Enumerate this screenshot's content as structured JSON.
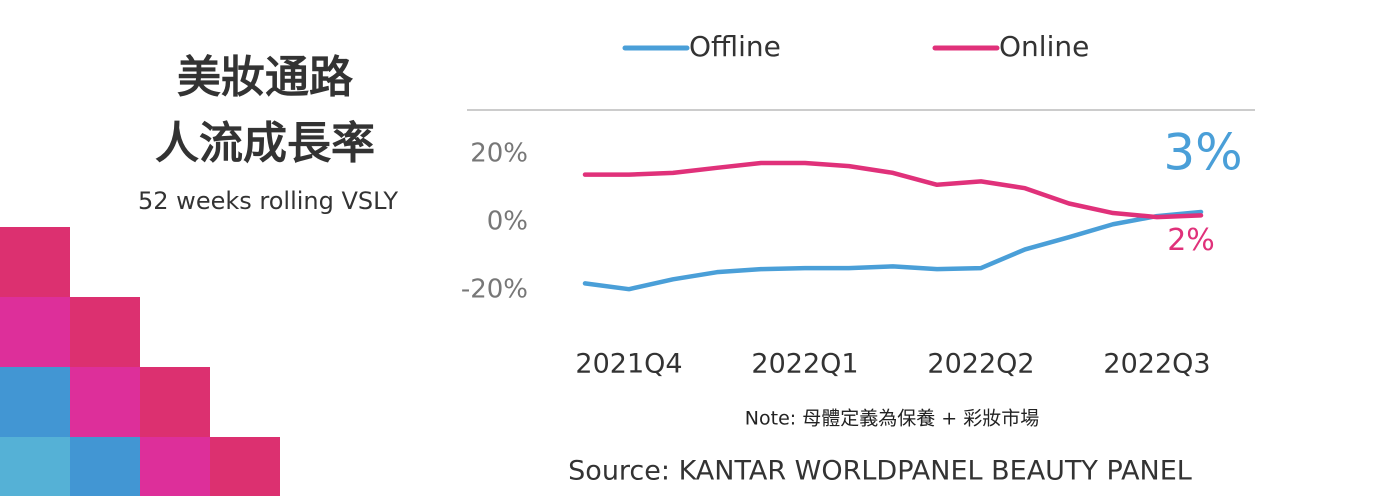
{
  "chart_data": {
    "type": "line",
    "title": [
      "美妝通路",
      "人流成長率"
    ],
    "subtitle": "52 weeks rolling VSLY",
    "categories": [
      null,
      "2021Q4",
      null,
      null,
      null,
      "2022Q1",
      null,
      null,
      null,
      "2022Q2",
      null,
      null,
      null,
      "2022Q3",
      null
    ],
    "series": [
      {
        "name": "Offline",
        "color": "#4a9fd8",
        "values": [
          -18,
          -19.7,
          -16.8,
          -14.7,
          -13.8,
          -13.5,
          -13.5,
          -13,
          -13.8,
          -13.5,
          -8,
          -4.4,
          -0.6,
          1.8,
          3
        ],
        "value_labels": [
          null,
          null,
          null,
          null,
          null,
          null,
          null,
          null,
          null,
          null,
          null,
          null,
          null,
          null,
          "3%"
        ]
      },
      {
        "name": "Online",
        "color": "#e0317a",
        "values": [
          14,
          14,
          14.5,
          16,
          17.4,
          17.4,
          16.5,
          14.5,
          11,
          12,
          10,
          5.5,
          2.7,
          1.5,
          2
        ],
        "value_labels": [
          null,
          null,
          null,
          null,
          null,
          null,
          null,
          null,
          null,
          null,
          null,
          null,
          null,
          null,
          "2%"
        ]
      }
    ],
    "ylim": [
      -32,
      33
    ],
    "yticks": [
      {
        "value": 20,
        "label": "20%"
      },
      {
        "value": 0,
        "label": "0%"
      },
      {
        "value": -20,
        "label": "-20%"
      }
    ],
    "legend": "top",
    "note": "Note: 母體定義為保養 + 彩妝市場",
    "source": "Source: KANTAR WORLDPANEL BEAUTY PANEL"
  }
}
